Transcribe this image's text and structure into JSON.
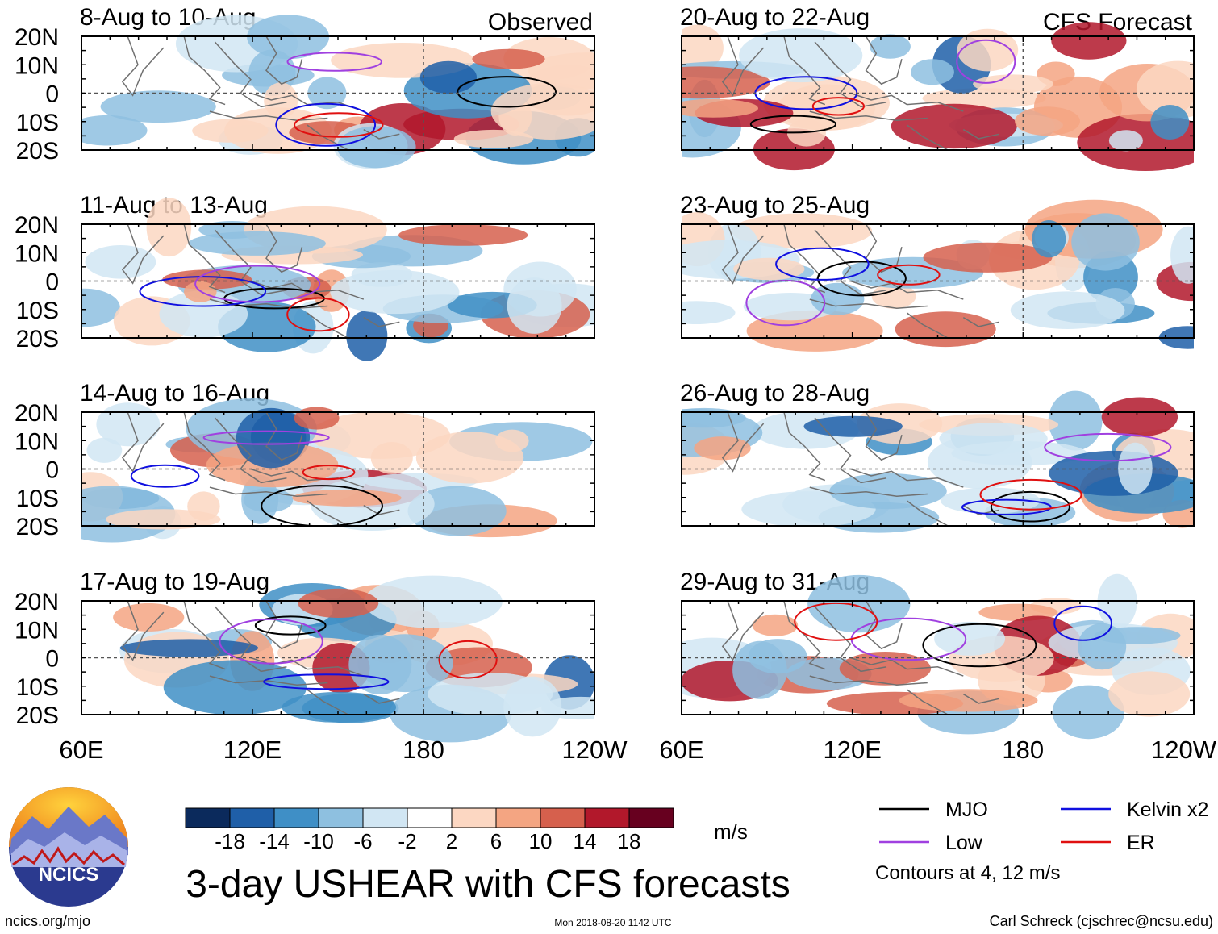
{
  "chart_data": {
    "type": "heatmap",
    "title": "3-day USHEAR with CFS forecasts",
    "variable": "USHEAR",
    "units": "m/s",
    "observed_label": "Observed",
    "forecast_label": "CFS Forecast",
    "lat_range": [
      -20,
      20
    ],
    "lon_range": [
      60,
      240
    ],
    "lat_ticks": [
      "20N",
      "10N",
      "0",
      "10S",
      "20S"
    ],
    "lon_ticks": [
      "60E",
      "120E",
      "180",
      "120W"
    ],
    "panels": [
      {
        "title": "8-Aug to 10-Aug",
        "source": "Observed"
      },
      {
        "title": "11-Aug to 13-Aug",
        "source": "Observed"
      },
      {
        "title": "14-Aug to 16-Aug",
        "source": "Observed"
      },
      {
        "title": "17-Aug to 19-Aug",
        "source": "Observed"
      },
      {
        "title": "20-Aug to 22-Aug",
        "source": "CFS Forecast"
      },
      {
        "title": "23-Aug to 25-Aug",
        "source": "CFS Forecast"
      },
      {
        "title": "26-Aug to 28-Aug",
        "source": "CFS Forecast"
      },
      {
        "title": "29-Aug to 31-Aug",
        "source": "CFS Forecast"
      }
    ],
    "colorbar": {
      "labels": [
        "-18",
        "-14",
        "-10",
        "-6",
        "-2",
        "2",
        "6",
        "10",
        "14",
        "18"
      ],
      "colors": [
        "#0b2a5c",
        "#1f5fa8",
        "#3f8fc6",
        "#8ec0e0",
        "#d1e6f3",
        "#ffffff",
        "#fcd7c2",
        "#f4a582",
        "#d6604d",
        "#b2182b",
        "#67001f"
      ]
    },
    "legend": [
      {
        "label": "MJO",
        "color": "#000000"
      },
      {
        "label": "Kelvin x2",
        "color": "#1010e0"
      },
      {
        "label": "Low",
        "color": "#a040e0"
      },
      {
        "label": "ER",
        "color": "#e01010"
      }
    ],
    "contour_note": "Contours at 4, 12 m/s"
  },
  "footer": {
    "logo_text": "NCICS",
    "url": "ncics.org/mjo",
    "timestamp": "Mon 2018-08-20 1142 UTC",
    "author": "Carl Schreck (cjschrec@ncsu.edu)"
  }
}
